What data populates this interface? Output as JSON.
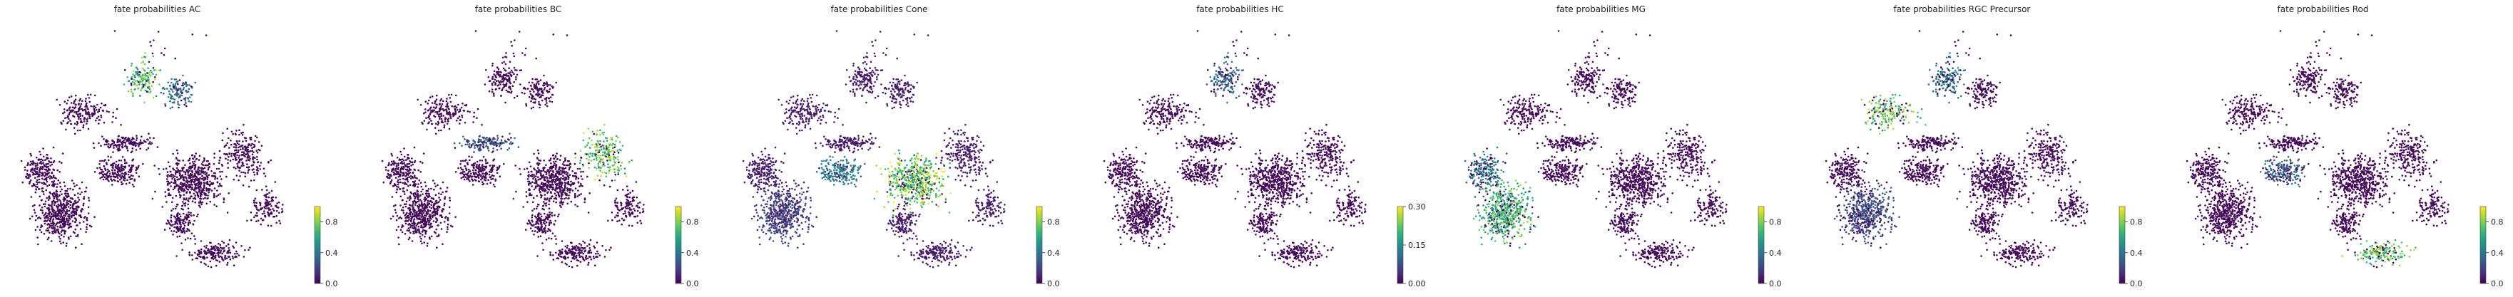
{
  "colormap": {
    "name": "viridis",
    "stops": [
      "#440154",
      "#482878",
      "#3e4989",
      "#31688e",
      "#26828e",
      "#1f9e89",
      "#35b779",
      "#6ece58",
      "#b5de2b",
      "#fde725"
    ]
  },
  "chart_data": [
    {
      "type": "scatter",
      "title": "fate probabilities AC",
      "color_range": [
        0,
        1
      ],
      "colorbar_ticks": [
        "0.0",
        "0.4",
        "0.8"
      ],
      "colorbar_tick_values": [
        0.0,
        0.4,
        0.8
      ],
      "high_regions": [
        {
          "region": "upper-center",
          "value": 0.9
        },
        {
          "region": "upper-right-arm",
          "value": 0.45
        }
      ],
      "base_value": 0.0
    },
    {
      "type": "scatter",
      "title": "fate probabilities BC",
      "color_range": [
        0,
        1
      ],
      "colorbar_ticks": [
        "0.0",
        "0.4",
        "0.8"
      ],
      "colorbar_tick_values": [
        0.0,
        0.4,
        0.8
      ],
      "high_regions": [
        {
          "region": "right-arm",
          "value": 0.95
        },
        {
          "region": "center-bridge",
          "value": 0.35
        }
      ],
      "base_value": 0.0
    },
    {
      "type": "scatter",
      "title": "fate probabilities Cone",
      "color_range": [
        0,
        1
      ],
      "colorbar_ticks": [
        "0.0",
        "0.4",
        "0.8"
      ],
      "colorbar_tick_values": [
        0.0,
        0.4,
        0.8
      ],
      "high_regions": [
        {
          "region": "right-center",
          "value": 0.98
        },
        {
          "region": "center",
          "value": 0.55
        },
        {
          "region": "lower-left",
          "value": 0.25
        }
      ],
      "base_value": 0.05
    },
    {
      "type": "scatter",
      "title": "fate probabilities HC",
      "color_range": [
        0,
        0.3
      ],
      "colorbar_ticks": [
        "0.00",
        "0.15",
        "0.30"
      ],
      "colorbar_tick_values": [
        0.0,
        0.15,
        0.3
      ],
      "high_regions": [
        {
          "region": "upper-center",
          "value": 0.12
        }
      ],
      "base_value": 0.0
    },
    {
      "type": "scatter",
      "title": "fate probabilities MG",
      "color_range": [
        0,
        1
      ],
      "colorbar_ticks": [
        "0.0",
        "0.4",
        "0.8"
      ],
      "colorbar_tick_values": [
        0.0,
        0.4,
        0.8
      ],
      "high_regions": [
        {
          "region": "lower-left",
          "value": 0.85
        },
        {
          "region": "left",
          "value": 0.5
        }
      ],
      "base_value": 0.0
    },
    {
      "type": "scatter",
      "title": "fate probabilities RGC Precursor",
      "color_range": [
        0,
        1
      ],
      "colorbar_ticks": [
        "0.0",
        "0.4",
        "0.8"
      ],
      "colorbar_tick_values": [
        0.0,
        0.4,
        0.8
      ],
      "high_regions": [
        {
          "region": "upper-left-arm",
          "value": 0.95
        },
        {
          "region": "upper-center",
          "value": 0.5
        },
        {
          "region": "lower-left",
          "value": 0.3
        }
      ],
      "base_value": 0.0
    },
    {
      "type": "scatter",
      "title": "fate probabilities Rod",
      "color_range": [
        0,
        1
      ],
      "colorbar_ticks": [
        "0.0",
        "0.4",
        "0.8"
      ],
      "colorbar_tick_values": [
        0.0,
        0.4,
        0.8
      ],
      "high_regions": [
        {
          "region": "lower-right",
          "value": 0.95
        },
        {
          "region": "center",
          "value": 0.4
        }
      ],
      "base_value": 0.0
    }
  ]
}
